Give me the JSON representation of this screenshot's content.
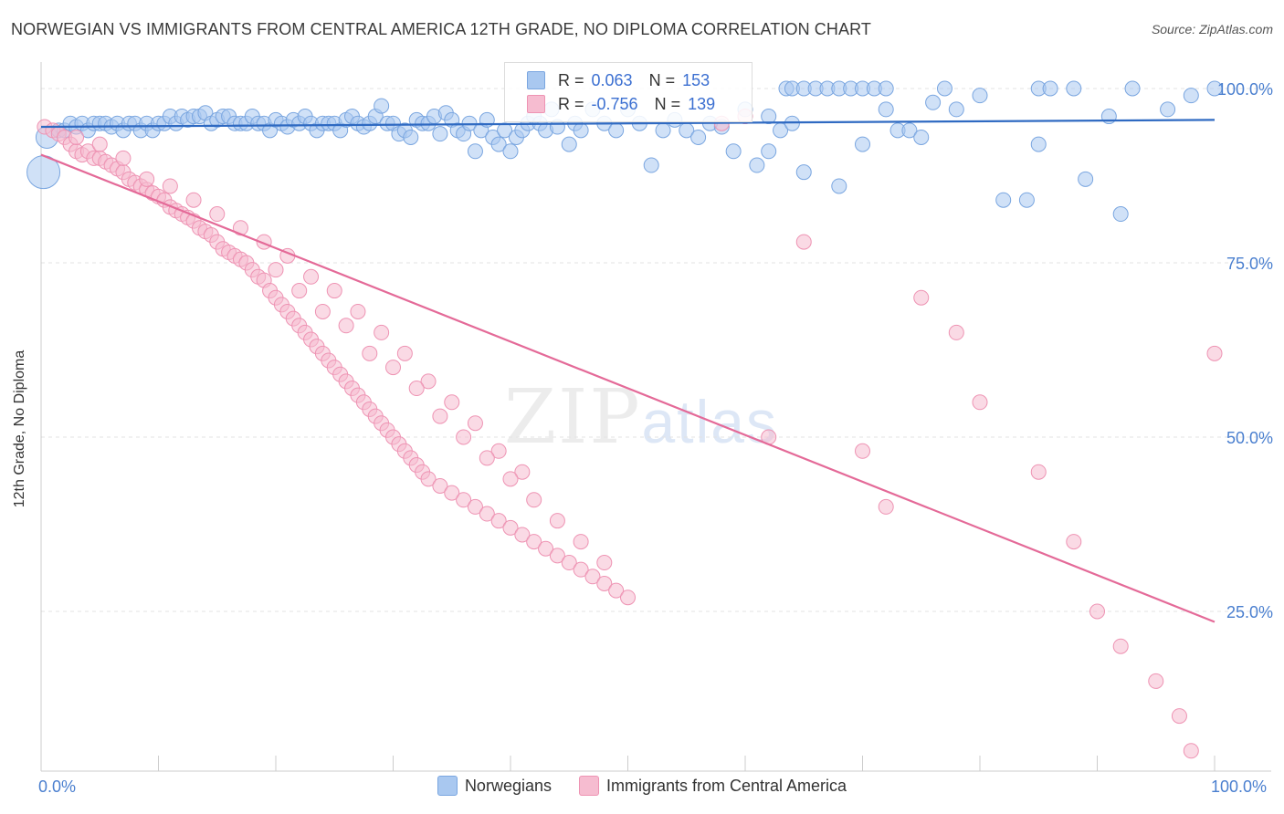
{
  "title": "NORWEGIAN VS IMMIGRANTS FROM CENTRAL AMERICA 12TH GRADE, NO DIPLOMA CORRELATION CHART",
  "source": "Source: ZipAtlas.com",
  "watermark": {
    "zip": "ZIP",
    "atlas": "atlas"
  },
  "colors": {
    "blue_fill": "#a9c8f0",
    "blue_stroke": "#7aa6e0",
    "blue_line": "#2f6ac2",
    "pink_fill": "#f6bcd0",
    "pink_stroke": "#ee93b3",
    "pink_line": "#e46a98",
    "grid": "#e3e3e3",
    "tick_text": "#4a7fcf"
  },
  "inset_legend": {
    "rows": [
      {
        "r_label": "R =",
        "r_value": "0.063",
        "n_label": "N =",
        "n_value": "153"
      },
      {
        "r_label": "R =",
        "r_value": "-0.756",
        "n_label": "N =",
        "n_value": "139"
      }
    ]
  },
  "chart_data": {
    "type": "scatter",
    "title": "NORWEGIAN VS IMMIGRANTS FROM CENTRAL AMERICA 12TH GRADE, NO DIPLOMA CORRELATION CHART",
    "ylabel": "12th Grade, No Diploma",
    "xlabel": "",
    "xlim": [
      0,
      100
    ],
    "ylim": [
      0,
      100
    ],
    "x_ticks": [
      "0.0%",
      "100.0%"
    ],
    "y_ticks": [
      "100.0%",
      "75.0%",
      "50.0%",
      "25.0%"
    ],
    "y_tick_values": [
      100,
      75,
      50,
      25
    ],
    "grid": true,
    "legend_placement": "bottom-center",
    "series": [
      {
        "name": "Norwegians",
        "color": "blue",
        "r": 0.063,
        "n": 153,
        "trend": {
          "x": [
            0,
            100
          ],
          "y": [
            94.5,
            95.5
          ]
        },
        "points": [
          [
            0.5,
            93
          ],
          [
            0.2,
            88
          ],
          [
            1.5,
            94
          ],
          [
            2,
            94
          ],
          [
            2.5,
            95
          ],
          [
            3,
            94.5
          ],
          [
            3.5,
            95
          ],
          [
            4,
            94
          ],
          [
            4.5,
            95
          ],
          [
            5,
            95
          ],
          [
            5.5,
            95
          ],
          [
            6,
            94.5
          ],
          [
            6.5,
            95
          ],
          [
            7,
            94
          ],
          [
            7.5,
            95
          ],
          [
            8,
            95
          ],
          [
            8.5,
            94
          ],
          [
            9,
            95
          ],
          [
            9.5,
            94
          ],
          [
            10,
            95
          ],
          [
            10.5,
            95
          ],
          [
            11,
            96
          ],
          [
            11.5,
            95
          ],
          [
            12,
            96
          ],
          [
            12.5,
            95.5
          ],
          [
            13,
            96
          ],
          [
            13.5,
            96
          ],
          [
            14,
            96.5
          ],
          [
            14.5,
            95
          ],
          [
            15,
            95.5
          ],
          [
            15.5,
            96
          ],
          [
            16,
            96
          ],
          [
            16.5,
            95
          ],
          [
            17,
            95
          ],
          [
            17.5,
            95
          ],
          [
            18,
            96
          ],
          [
            18.5,
            95
          ],
          [
            19,
            95
          ],
          [
            19.5,
            94
          ],
          [
            20,
            95.5
          ],
          [
            20.5,
            95
          ],
          [
            21,
            94.5
          ],
          [
            21.5,
            95.5
          ],
          [
            22,
            95
          ],
          [
            22.5,
            96
          ],
          [
            23,
            95
          ],
          [
            23.5,
            94
          ],
          [
            24,
            95
          ],
          [
            24.5,
            95
          ],
          [
            25,
            95
          ],
          [
            25.5,
            94
          ],
          [
            26,
            95.5
          ],
          [
            26.5,
            96
          ],
          [
            27,
            95
          ],
          [
            27.5,
            94.5
          ],
          [
            28,
            95
          ],
          [
            28.5,
            96
          ],
          [
            29,
            97.5
          ],
          [
            29.5,
            95
          ],
          [
            30,
            95
          ],
          [
            30.5,
            93.5
          ],
          [
            31,
            94
          ],
          [
            31.5,
            93
          ],
          [
            32,
            95.5
          ],
          [
            32.5,
            95
          ],
          [
            33,
            95
          ],
          [
            33.5,
            96
          ],
          [
            34,
            93.5
          ],
          [
            34.5,
            96.5
          ],
          [
            35,
            95.5
          ],
          [
            35.5,
            94
          ],
          [
            36,
            93.5
          ],
          [
            36.5,
            95
          ],
          [
            37,
            91
          ],
          [
            37.5,
            94
          ],
          [
            38,
            95.5
          ],
          [
            38.5,
            93
          ],
          [
            39,
            92
          ],
          [
            39.5,
            94
          ],
          [
            40,
            91
          ],
          [
            40.5,
            93
          ],
          [
            41,
            94
          ],
          [
            41.5,
            95
          ],
          [
            42,
            96
          ],
          [
            42.5,
            95
          ],
          [
            43,
            94
          ],
          [
            43.5,
            97
          ],
          [
            44,
            94.5
          ],
          [
            45,
            92
          ],
          [
            45.5,
            95
          ],
          [
            46,
            94
          ],
          [
            47,
            97
          ],
          [
            48,
            95
          ],
          [
            49,
            94
          ],
          [
            50,
            97
          ],
          [
            51,
            95
          ],
          [
            52,
            89
          ],
          [
            53,
            94
          ],
          [
            54,
            95.5
          ],
          [
            55,
            94
          ],
          [
            56,
            93
          ],
          [
            57,
            95
          ],
          [
            58,
            94.5
          ],
          [
            59,
            91
          ],
          [
            60,
            97
          ],
          [
            61,
            89
          ],
          [
            62,
            96
          ],
          [
            63,
            94
          ],
          [
            63.5,
            100
          ],
          [
            64,
            100
          ],
          [
            65,
            100
          ],
          [
            66,
            100
          ],
          [
            67,
            100
          ],
          [
            68,
            100
          ],
          [
            69,
            100
          ],
          [
            70,
            100
          ],
          [
            71,
            100
          ],
          [
            72,
            100
          ],
          [
            73,
            94
          ],
          [
            74,
            94
          ],
          [
            75,
            93
          ],
          [
            76,
            98
          ],
          [
            77,
            100
          ],
          [
            78,
            97
          ],
          [
            80,
            99
          ],
          [
            82,
            84
          ],
          [
            84,
            84
          ],
          [
            85,
            100
          ],
          [
            86,
            100
          ],
          [
            88,
            100
          ],
          [
            91,
            96
          ],
          [
            93,
            100
          ],
          [
            96,
            97
          ],
          [
            98,
            99
          ],
          [
            100,
            100
          ],
          [
            85,
            92
          ],
          [
            89,
            87
          ],
          [
            92,
            82
          ],
          [
            62,
            91
          ],
          [
            64,
            95
          ],
          [
            70,
            92
          ],
          [
            72,
            97
          ],
          [
            65,
            88
          ],
          [
            68,
            86
          ]
        ]
      },
      {
        "name": "Immigrants from Central America",
        "color": "pink",
        "r": -0.756,
        "n": 139,
        "trend": {
          "x": [
            0,
            100
          ],
          "y": [
            90.5,
            23.5
          ]
        },
        "points": [
          [
            0.3,
            94.5
          ],
          [
            1,
            94
          ],
          [
            1.5,
            93.5
          ],
          [
            2,
            93
          ],
          [
            2.5,
            92
          ],
          [
            3,
            91
          ],
          [
            3.5,
            90.5
          ],
          [
            4,
            91
          ],
          [
            4.5,
            90
          ],
          [
            5,
            90
          ],
          [
            5.5,
            89.5
          ],
          [
            6,
            89
          ],
          [
            6.5,
            88.5
          ],
          [
            7,
            88
          ],
          [
            7.5,
            87
          ],
          [
            8,
            86.5
          ],
          [
            8.5,
            86
          ],
          [
            9,
            85.5
          ],
          [
            9.5,
            85
          ],
          [
            10,
            84.5
          ],
          [
            10.5,
            84
          ],
          [
            11,
            83
          ],
          [
            11.5,
            82.5
          ],
          [
            12,
            82
          ],
          [
            12.5,
            81.5
          ],
          [
            13,
            81
          ],
          [
            13.5,
            80
          ],
          [
            14,
            79.5
          ],
          [
            14.5,
            79
          ],
          [
            15,
            78
          ],
          [
            15.5,
            77
          ],
          [
            16,
            76.5
          ],
          [
            16.5,
            76
          ],
          [
            17,
            75.5
          ],
          [
            17.5,
            75
          ],
          [
            18,
            74
          ],
          [
            18.5,
            73
          ],
          [
            19,
            72.5
          ],
          [
            19.5,
            71
          ],
          [
            20,
            70
          ],
          [
            20.5,
            69
          ],
          [
            21,
            68
          ],
          [
            21.5,
            67
          ],
          [
            22,
            66
          ],
          [
            22.5,
            65
          ],
          [
            23,
            64
          ],
          [
            23.5,
            63
          ],
          [
            24,
            62
          ],
          [
            24.5,
            61
          ],
          [
            25,
            60
          ],
          [
            25.5,
            59
          ],
          [
            26,
            58
          ],
          [
            26.5,
            57
          ],
          [
            27,
            56
          ],
          [
            27.5,
            55
          ],
          [
            28,
            54
          ],
          [
            28.5,
            53
          ],
          [
            29,
            52
          ],
          [
            29.5,
            51
          ],
          [
            30,
            50
          ],
          [
            30.5,
            49
          ],
          [
            31,
            48
          ],
          [
            31.5,
            47
          ],
          [
            32,
            46
          ],
          [
            32.5,
            45
          ],
          [
            33,
            44
          ],
          [
            34,
            43
          ],
          [
            35,
            42
          ],
          [
            36,
            41
          ],
          [
            37,
            40
          ],
          [
            38,
            39
          ],
          [
            39,
            38
          ],
          [
            40,
            37
          ],
          [
            41,
            36
          ],
          [
            42,
            35
          ],
          [
            43,
            34
          ],
          [
            44,
            33
          ],
          [
            45,
            32
          ],
          [
            46,
            31
          ],
          [
            47,
            30
          ],
          [
            48,
            29
          ],
          [
            49,
            28
          ],
          [
            50,
            27
          ],
          [
            3,
            93
          ],
          [
            5,
            92
          ],
          [
            7,
            90
          ],
          [
            9,
            87
          ],
          [
            11,
            86
          ],
          [
            13,
            84
          ],
          [
            15,
            82
          ],
          [
            17,
            80
          ],
          [
            19,
            78
          ],
          [
            21,
            76
          ],
          [
            23,
            73
          ],
          [
            25,
            71
          ],
          [
            27,
            68
          ],
          [
            29,
            65
          ],
          [
            31,
            62
          ],
          [
            33,
            58
          ],
          [
            35,
            55
          ],
          [
            37,
            52
          ],
          [
            39,
            48
          ],
          [
            41,
            45
          ],
          [
            20,
            74
          ],
          [
            22,
            71
          ],
          [
            24,
            68
          ],
          [
            26,
            66
          ],
          [
            28,
            62
          ],
          [
            30,
            60
          ],
          [
            32,
            57
          ],
          [
            34,
            53
          ],
          [
            36,
            50
          ],
          [
            38,
            47
          ],
          [
            40,
            44
          ],
          [
            42,
            41
          ],
          [
            44,
            38
          ],
          [
            46,
            35
          ],
          [
            48,
            32
          ],
          [
            58,
            95
          ],
          [
            60,
            96
          ],
          [
            65,
            78
          ],
          [
            62,
            50
          ],
          [
            70,
            48
          ],
          [
            72,
            40
          ],
          [
            75,
            70
          ],
          [
            78,
            65
          ],
          [
            80,
            55
          ],
          [
            85,
            45
          ],
          [
            88,
            35
          ],
          [
            90,
            25
          ],
          [
            92,
            20
          ],
          [
            95,
            15
          ],
          [
            97,
            10
          ],
          [
            98,
            5
          ],
          [
            100,
            62
          ]
        ]
      }
    ]
  },
  "legend": {
    "items": [
      {
        "label": "Norwegians",
        "color": "blue"
      },
      {
        "label": "Immigrants from Central America",
        "color": "pink"
      }
    ]
  }
}
